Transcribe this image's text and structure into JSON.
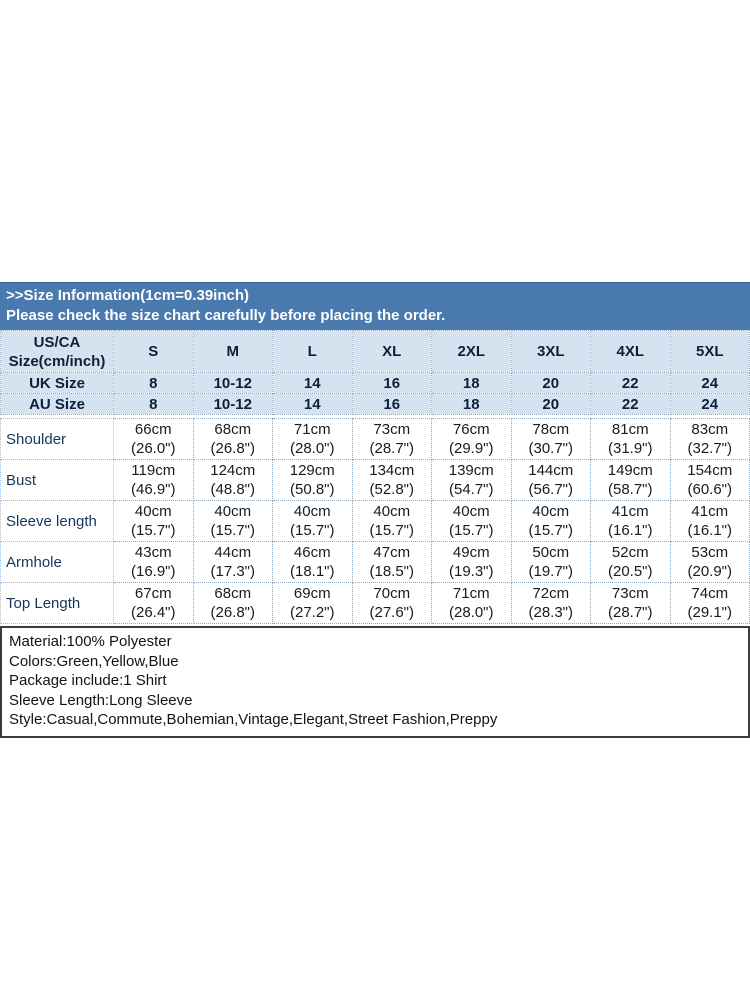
{
  "banner": {
    "line1": ">>Size Information(1cm=0.39inch)",
    "line2": "Please check the size chart carefully before placing the order."
  },
  "table": {
    "corner_label": "US/CA\nSize(cm/inch)",
    "size_columns": [
      "S",
      "M",
      "L",
      "XL",
      "2XL",
      "3XL",
      "4XL",
      "5XL"
    ],
    "uk": {
      "label": "UK Size",
      "values": [
        "8",
        "10-12",
        "14",
        "16",
        "18",
        "20",
        "22",
        "24"
      ]
    },
    "au": {
      "label": "AU Size",
      "values": [
        "8",
        "10-12",
        "14",
        "16",
        "18",
        "20",
        "22",
        "24"
      ]
    },
    "rows": [
      {
        "label": "Shoulder",
        "cells": [
          "66cm\n(26.0\")",
          "68cm\n(26.8\")",
          "71cm\n(28.0\")",
          "73cm\n(28.7\")",
          "76cm\n(29.9\")",
          "78cm\n(30.7\")",
          "81cm\n(31.9\")",
          "83cm\n(32.7\")"
        ]
      },
      {
        "label": "Bust",
        "cells": [
          "119cm\n(46.9\")",
          "124cm\n(48.8\")",
          "129cm\n(50.8\")",
          "134cm\n(52.8\")",
          "139cm\n(54.7\")",
          "144cm\n(56.7\")",
          "149cm\n(58.7\")",
          "154cm\n(60.6\")"
        ]
      },
      {
        "label": "Sleeve length",
        "cells": [
          "40cm\n(15.7\")",
          "40cm\n(15.7\")",
          "40cm\n(15.7\")",
          "40cm\n(15.7\")",
          "40cm\n(15.7\")",
          "40cm\n(15.7\")",
          "41cm\n(16.1\")",
          "41cm\n(16.1\")"
        ]
      },
      {
        "label": "Armhole",
        "cells": [
          "43cm\n(16.9\")",
          "44cm\n(17.3\")",
          "46cm\n(18.1\")",
          "47cm\n(18.5\")",
          "49cm\n(19.3\")",
          "50cm\n(19.7\")",
          "52cm\n(20.5\")",
          "53cm\n(20.9\")"
        ]
      },
      {
        "label": "Top Length",
        "cells": [
          "67cm\n(26.4\")",
          "68cm\n(26.8\")",
          "69cm\n(27.2\")",
          "70cm\n(27.6\")",
          "71cm\n(28.0\")",
          "72cm\n(28.3\")",
          "73cm\n(28.7\")",
          "74cm\n(29.1\")"
        ]
      }
    ]
  },
  "details": {
    "lines": [
      "Material:100% Polyester",
      "Colors:Green,Yellow,Blue",
      "Package include:1 Shirt",
      "Sleeve Length:Long Sleeve",
      "Style:Casual,Commute,Bohemian,Vintage,Elegant,Street Fashion,Preppy"
    ]
  },
  "colors": {
    "banner_bg": "#4a79ad",
    "header_bg": "#d5e3f1",
    "label_col_bg": "#649dd2",
    "label_text": "#16365c",
    "grid_dotted": "#93a9bd",
    "details_border": "#3c3c3c"
  }
}
